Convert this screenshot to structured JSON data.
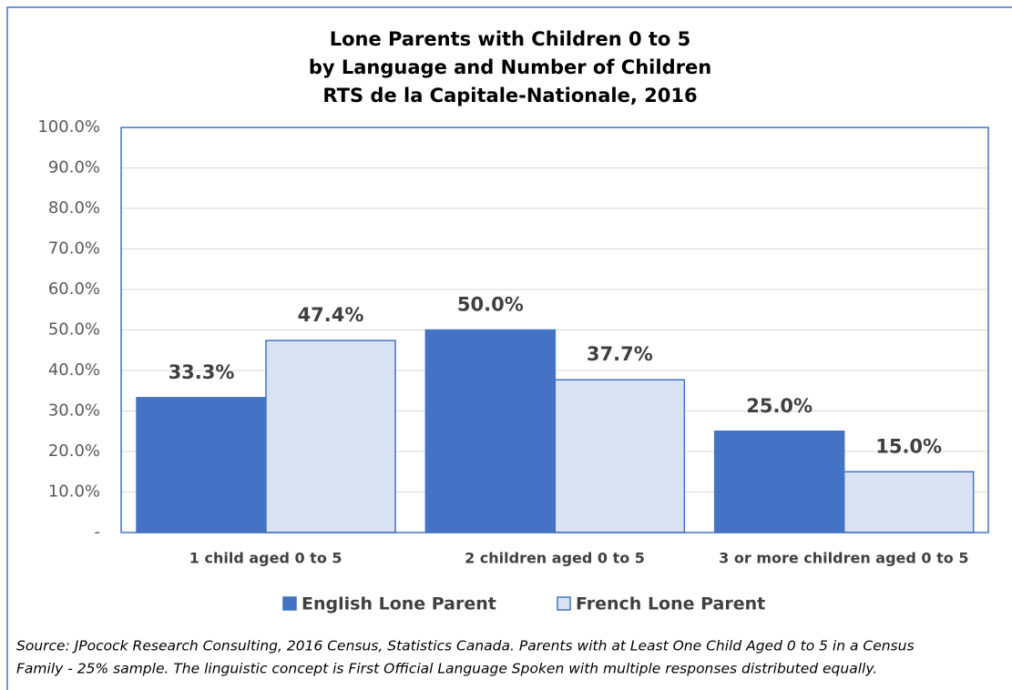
{
  "chart_data": {
    "type": "bar",
    "title": [
      "Lone Parents with Children 0 to 5",
      "by Language and Number of Children",
      "RTS de la Capitale-Nationale, 2016"
    ],
    "categories": [
      "1 child aged 0 to 5",
      "2 children aged 0 to 5",
      "3 or more children aged 0 to 5"
    ],
    "series": [
      {
        "name": "English Lone Parent",
        "color": "#4472c4",
        "values": [
          33.3,
          50.0,
          25.0
        ],
        "value_labels": [
          "33.3%",
          "50.0%",
          "25.0%"
        ]
      },
      {
        "name": "French Lone Parent",
        "color": "#dae3f3",
        "values": [
          47.4,
          37.7,
          15.0
        ],
        "value_labels": [
          "47.4%",
          "37.7%",
          "15.0%"
        ]
      }
    ],
    "ylim": [
      0,
      100
    ],
    "yticks": [
      {
        "value": 0,
        "label": "-"
      },
      {
        "value": 10,
        "label": "10.0%"
      },
      {
        "value": 20,
        "label": "20.0%"
      },
      {
        "value": 30,
        "label": "30.0%"
      },
      {
        "value": 40,
        "label": "40.0%"
      },
      {
        "value": 50,
        "label": "50.0%"
      },
      {
        "value": 60,
        "label": "60.0%"
      },
      {
        "value": 70,
        "label": "70.0%"
      },
      {
        "value": 80,
        "label": "80.0%"
      },
      {
        "value": 90,
        "label": "90.0%"
      },
      {
        "value": 100,
        "label": "100.0%"
      }
    ],
    "grid": true,
    "legend": "bottom",
    "note": [
      "Source: JPocock Research Consulting, 2016 Census, Statistics Canada. Parents with at Least One Child Aged 0 to 5 in a Census",
      "Family - 25% sample. The linguistic concept is First Official Language Spoken with multiple responses distributed equally."
    ]
  }
}
